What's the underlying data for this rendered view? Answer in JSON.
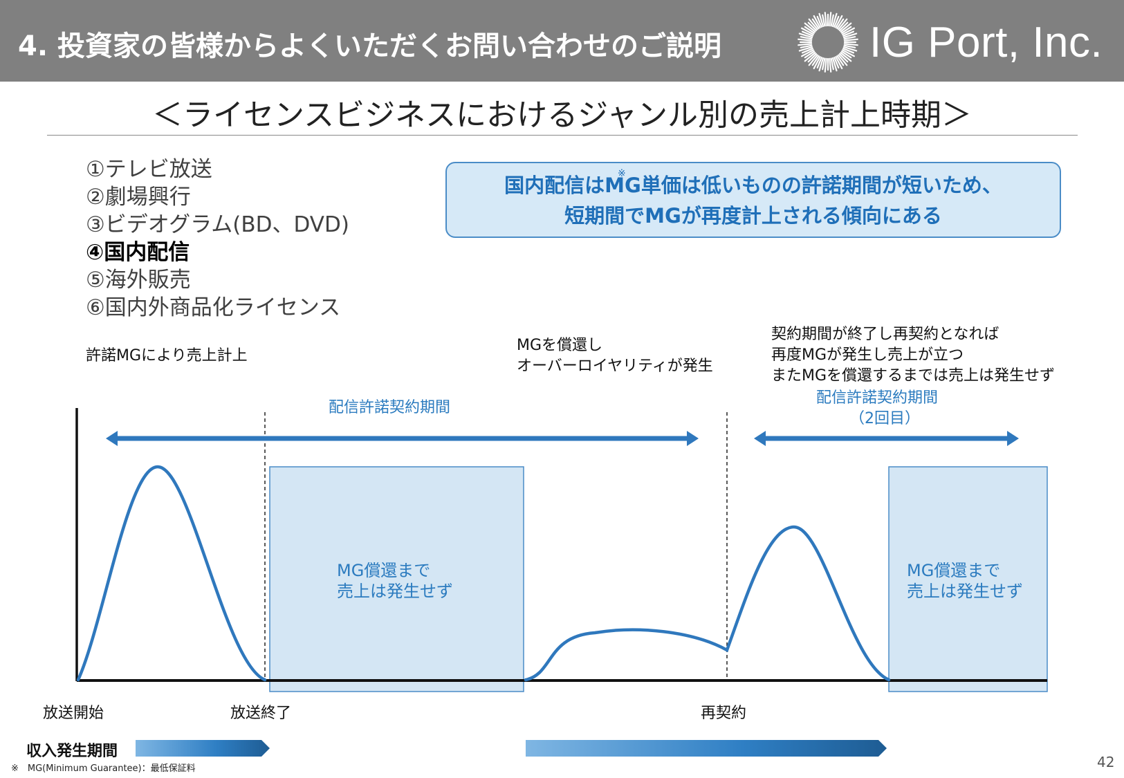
{
  "header": {
    "title": "4. 投資家の皆様からよくいただくお問い合わせのご説明",
    "logo_text": "IG Port, Inc."
  },
  "subtitle": "＜ライセンスビジネスにおけるジャンル別の売上計上時期＞",
  "genres": [
    {
      "label": "①テレビ放送",
      "active": false
    },
    {
      "label": "②劇場興行",
      "active": false
    },
    {
      "label": "③ビデオグラム(BD、DVD)",
      "active": false
    },
    {
      "label": "④国内配信",
      "active": true
    },
    {
      "label": "⑤海外販売",
      "active": false
    },
    {
      "label": "⑥国内外商品化ライセンス",
      "active": false
    }
  ],
  "callout": {
    "line1": "国内配信はMG単価は低いものの許諾期間が短いため、",
    "line2": "短期間でMGが再度計上される傾向にある",
    "mark": "※"
  },
  "annotations": {
    "license_mg": "許諾MGにより売上計上",
    "overroyalty_line1": "MGを償還し",
    "overroyalty_line2": "オーバーロイヤリティが発生",
    "renew_line1": "契約期間が終了し再契約となれば",
    "renew_line2": "再度MGが発生し売上が立つ",
    "renew_line3": "またMGを償還するまでは売上は発生せず"
  },
  "periods": {
    "first": "配信許諾契約期間",
    "second_line1": "配信許諾契約期間",
    "second_line2": "（2回目）"
  },
  "boxes": {
    "line1": "MG償還まで",
    "line2": "売上は発生せず"
  },
  "axis": {
    "start": "放送開始",
    "end": "放送終了",
    "renew": "再契約"
  },
  "income_label": "収入発生期間",
  "footnote": "※　MG(Minimum Guarantee)：最低保証料",
  "page_number": "42",
  "colors": {
    "header_bg": "#808080",
    "accent_blue": "#2b7bbf",
    "arrow_blue": "#2f78bd",
    "box_fill": "#d4e6f4"
  }
}
